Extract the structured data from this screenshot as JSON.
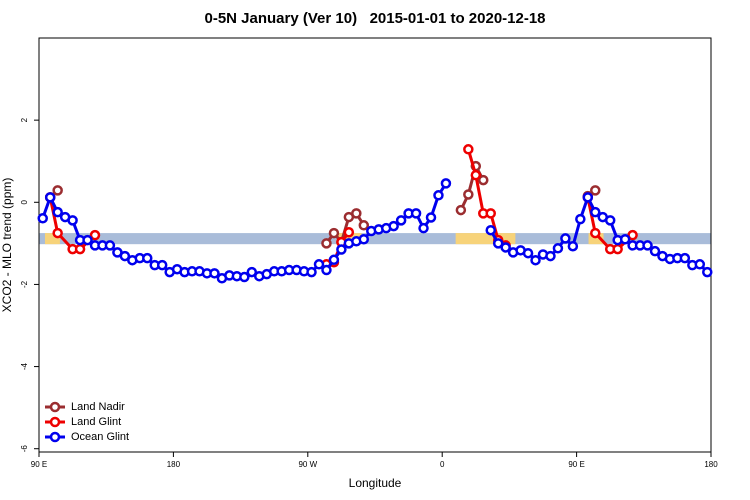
{
  "chart_data": {
    "type": "line",
    "title": "0-5N January (Ver 10)   2015-01-01 to 2020-12-18",
    "x_label": "Longitude",
    "y_label": "XCO2 - MLO trend (ppm)",
    "xlim": [
      90,
      540
    ],
    "ylim": [
      -6.08,
      4
    ],
    "xticks": [
      {
        "value": 90,
        "label": "90 E"
      },
      {
        "value": 180,
        "label": "180"
      },
      {
        "value": 270,
        "label": "90 W"
      },
      {
        "value": 360,
        "label": "0"
      },
      {
        "value": 450,
        "label": "90 E"
      },
      {
        "value": 540,
        "label": "180"
      }
    ],
    "yticks": [
      -6,
      -4,
      -2,
      0,
      2
    ],
    "band": {
      "ylim": [
        -1.02,
        -0.75
      ],
      "color": "#a9bcd9",
      "land_color": "#f7d37a",
      "land_segments": [
        [
          94,
          104
        ],
        [
          290,
          306
        ],
        [
          369,
          409
        ],
        [
          458,
          468
        ]
      ]
    },
    "legend": "bottom-left",
    "series": [
      {
        "name": "Land Nadir",
        "color": "#9b2d30",
        "x": [
          97.5,
          102.5,
          107.5,
          282.5,
          287.5,
          292.5,
          297.5,
          302.5,
          307.5,
          312.5,
          372.5,
          377.5,
          382.5,
          387.5,
          392.5,
          457.5,
          462.5
        ],
        "values": [
          0.12,
          0.29,
          null,
          -1.0,
          -0.75,
          -0.97,
          -0.36,
          -0.27,
          -0.56,
          null,
          -0.19,
          0.19,
          0.88,
          0.54,
          null,
          0.15,
          0.29
        ]
      },
      {
        "name": "Land Glint",
        "color": "#ee0000",
        "x": [
          97.5,
          102.5,
          112.5,
          117.5,
          127.5,
          132.5,
          282.5,
          287.5,
          292.5,
          297.5,
          302.5,
          377.5,
          382.5,
          387.5,
          392.5,
          397.5,
          402.5,
          407.5,
          457.5,
          462.5,
          472.5,
          477.5,
          487.5
        ],
        "values": [
          0.12,
          -0.75,
          -1.14,
          -1.14,
          -0.8,
          null,
          -1.51,
          -1.46,
          -0.97,
          -0.73,
          null,
          1.29,
          0.66,
          -0.27,
          -0.27,
          -0.92,
          -1.05,
          null,
          0.12,
          -0.75,
          -1.14,
          -1.14,
          -0.8
        ]
      },
      {
        "name": "Ocean Glint",
        "color": "#0000ee",
        "x": [
          92.5,
          97.5,
          102.5,
          107.5,
          112.5,
          117.5,
          122.5,
          127.5,
          132.5,
          137.5,
          142.5,
          147.5,
          152.5,
          157.5,
          162.5,
          167.5,
          172.5,
          177.5,
          182.5,
          187.5,
          192.5,
          197.5,
          202.5,
          207.5,
          212.5,
          217.5,
          222.5,
          227.5,
          232.5,
          237.5,
          242.5,
          247.5,
          252.5,
          257.5,
          262.5,
          267.5,
          272.5,
          277.5,
          282.5,
          287.5,
          292.5,
          297.5,
          302.5,
          307.5,
          312.5,
          317.5,
          322.5,
          327.5,
          332.5,
          337.5,
          342.5,
          347.5,
          352.5,
          357.5,
          362.5,
          367.5,
          372.5,
          377.5,
          382.5,
          387.5,
          392.5,
          397.5,
          402.5,
          407.5,
          412.5,
          417.5,
          422.5,
          427.5,
          432.5,
          437.5,
          442.5,
          447.5,
          452.5,
          457.5,
          462.5,
          467.5,
          472.5,
          477.5,
          482.5,
          487.5,
          492.5,
          497.5,
          502.5,
          507.5,
          512.5,
          517.5,
          522.5,
          527.5,
          532.5,
          537.5
        ],
        "values": [
          -0.39,
          0.12,
          -0.24,
          -0.36,
          -0.44,
          -0.92,
          -0.92,
          -1.05,
          -1.05,
          -1.05,
          -1.22,
          -1.31,
          -1.41,
          -1.36,
          -1.36,
          -1.53,
          -1.53,
          -1.7,
          -1.63,
          -1.7,
          -1.68,
          -1.68,
          -1.73,
          -1.73,
          -1.85,
          -1.78,
          -1.8,
          -1.82,
          -1.7,
          -1.8,
          -1.75,
          -1.68,
          -1.68,
          -1.65,
          -1.65,
          -1.68,
          -1.7,
          -1.51,
          -1.65,
          -1.4,
          -1.15,
          -1.0,
          -0.95,
          -0.9,
          -0.7,
          -0.66,
          -0.63,
          -0.58,
          -0.44,
          -0.27,
          -0.27,
          -0.63,
          -0.37,
          0.17,
          0.46,
          null,
          null,
          null,
          null,
          null,
          -0.68,
          -1.0,
          -1.1,
          -1.22,
          -1.17,
          -1.24,
          -1.41,
          -1.27,
          -1.31,
          -1.12,
          -0.88,
          -1.07,
          -0.41,
          0.12,
          -0.24,
          -0.36,
          -0.44,
          -0.92,
          -0.9,
          -1.05,
          -1.05,
          -1.05,
          -1.19,
          -1.31,
          -1.38,
          -1.36,
          -1.36,
          -1.53,
          -1.51,
          -1.7
        ]
      }
    ]
  }
}
